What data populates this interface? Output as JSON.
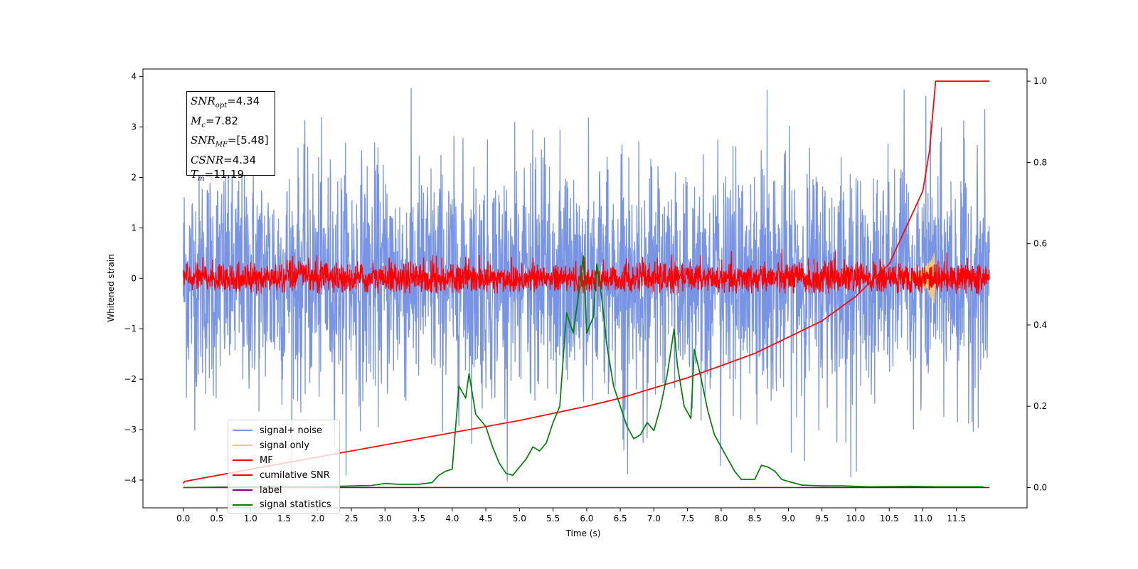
{
  "chart_data": {
    "type": "line",
    "xlabel": "Time (s)",
    "ylabel": "Whitened strain",
    "xlim": [
      -0.6,
      12.55
    ],
    "ylim": [
      -4.55,
      4.15
    ],
    "ylim_right": [
      -0.05,
      1.03
    ],
    "x_ticks": [
      "0.0",
      "0.5",
      "1.0",
      "1.5",
      "2.0",
      "2.5",
      "3.0",
      "3.5",
      "4.0",
      "4.5",
      "5.0",
      "5.5",
      "6.0",
      "6.5",
      "7.0",
      "7.5",
      "8.0",
      "8.5",
      "9.0",
      "9.5",
      "10.0",
      "10.5",
      "11.0",
      "11.5"
    ],
    "y_ticks_left": [
      "−4",
      "−3",
      "−2",
      "−1",
      "0",
      "1",
      "2",
      "3",
      "4"
    ],
    "y_ticks_right": [
      "0.0",
      "0.2",
      "0.4",
      "0.6",
      "0.8",
      "1.0"
    ],
    "stats_box": {
      "snr_opt": "=4.34",
      "mc": "=7.82",
      "snr_mf": "=[5.48]",
      "csnr": "=4.34",
      "tm": "=11.19"
    },
    "series": [
      {
        "name": "signal+ noise",
        "color": "#7894e6",
        "axis": "left",
        "kind": "noise",
        "x_range": [
          0,
          11.99
        ],
        "amplitude_range": [
          -4.1,
          3.8
        ]
      },
      {
        "name": "signal only",
        "color": "#f4c97a",
        "axis": "left",
        "kind": "chirp",
        "x_range": [
          10.5,
          11.19
        ],
        "amplitude_range": [
          -0.65,
          0.45
        ]
      },
      {
        "name": "MF",
        "color": "#ff0000",
        "axis": "left",
        "kind": "noise",
        "x_range": [
          0,
          11.99
        ],
        "amplitude_range": [
          -0.3,
          0.62
        ]
      },
      {
        "name": "cumilative SNR",
        "color": "#ff0000",
        "axis": "right",
        "x": [
          0,
          0.02,
          1,
          2,
          3,
          4,
          5,
          6,
          6.5,
          7,
          7.5,
          8,
          8.5,
          9,
          9.5,
          10,
          10.5,
          11,
          11.1,
          11.19,
          11.99
        ],
        "values": [
          0.01,
          0.015,
          0.045,
          0.075,
          0.105,
          0.135,
          0.165,
          0.2,
          0.22,
          0.245,
          0.27,
          0.3,
          0.33,
          0.37,
          0.41,
          0.47,
          0.55,
          0.73,
          0.83,
          1.0,
          1.0
        ]
      },
      {
        "name": "label",
        "color": "#800080",
        "axis": "right",
        "x": [
          0,
          11.99
        ],
        "values": [
          0.0,
          0.0
        ]
      },
      {
        "name": "signal statistics",
        "color": "#008000",
        "axis": "right",
        "x": [
          0,
          1,
          2,
          2.8,
          3.0,
          3.2,
          3.5,
          3.7,
          3.8,
          3.9,
          4.0,
          4.1,
          4.2,
          4.25,
          4.35,
          4.5,
          4.6,
          4.7,
          4.8,
          4.9,
          5.0,
          5.1,
          5.2,
          5.3,
          5.4,
          5.5,
          5.6,
          5.7,
          5.8,
          5.9,
          5.95,
          6.0,
          6.1,
          6.15,
          6.2,
          6.3,
          6.4,
          6.5,
          6.6,
          6.7,
          6.8,
          6.9,
          7.0,
          7.1,
          7.2,
          7.3,
          7.35,
          7.45,
          7.55,
          7.6,
          7.7,
          7.8,
          7.9,
          8.0,
          8.1,
          8.2,
          8.3,
          8.5,
          8.6,
          8.7,
          8.8,
          8.9,
          9.0,
          9.2,
          9.5,
          9.8,
          10.2,
          10.8,
          11.2,
          11.9
        ],
        "values": [
          0.0,
          0.002,
          0.002,
          0.005,
          0.01,
          0.008,
          0.008,
          0.012,
          0.03,
          0.04,
          0.045,
          0.25,
          0.22,
          0.28,
          0.18,
          0.15,
          0.1,
          0.06,
          0.035,
          0.03,
          0.05,
          0.07,
          0.1,
          0.09,
          0.11,
          0.16,
          0.2,
          0.43,
          0.38,
          0.5,
          0.57,
          0.38,
          0.42,
          0.55,
          0.5,
          0.35,
          0.25,
          0.2,
          0.15,
          0.12,
          0.13,
          0.16,
          0.14,
          0.2,
          0.28,
          0.39,
          0.3,
          0.2,
          0.17,
          0.34,
          0.27,
          0.19,
          0.13,
          0.1,
          0.07,
          0.04,
          0.02,
          0.02,
          0.055,
          0.05,
          0.04,
          0.02,
          0.015,
          0.006,
          0.004,
          0.004,
          0.002,
          0.003,
          0.002,
          0.002
        ]
      }
    ]
  },
  "legend": {
    "items": [
      {
        "label": "signal+ noise",
        "color": "#7894e6"
      },
      {
        "label": "signal only",
        "color": "#f4c97a"
      },
      {
        "label": "MF",
        "color": "#ff0000"
      },
      {
        "label": "cumilative SNR",
        "color": "#ff0000"
      },
      {
        "label": "label",
        "color": "#800080"
      },
      {
        "label": "signal statistics",
        "color": "#008000"
      }
    ]
  }
}
